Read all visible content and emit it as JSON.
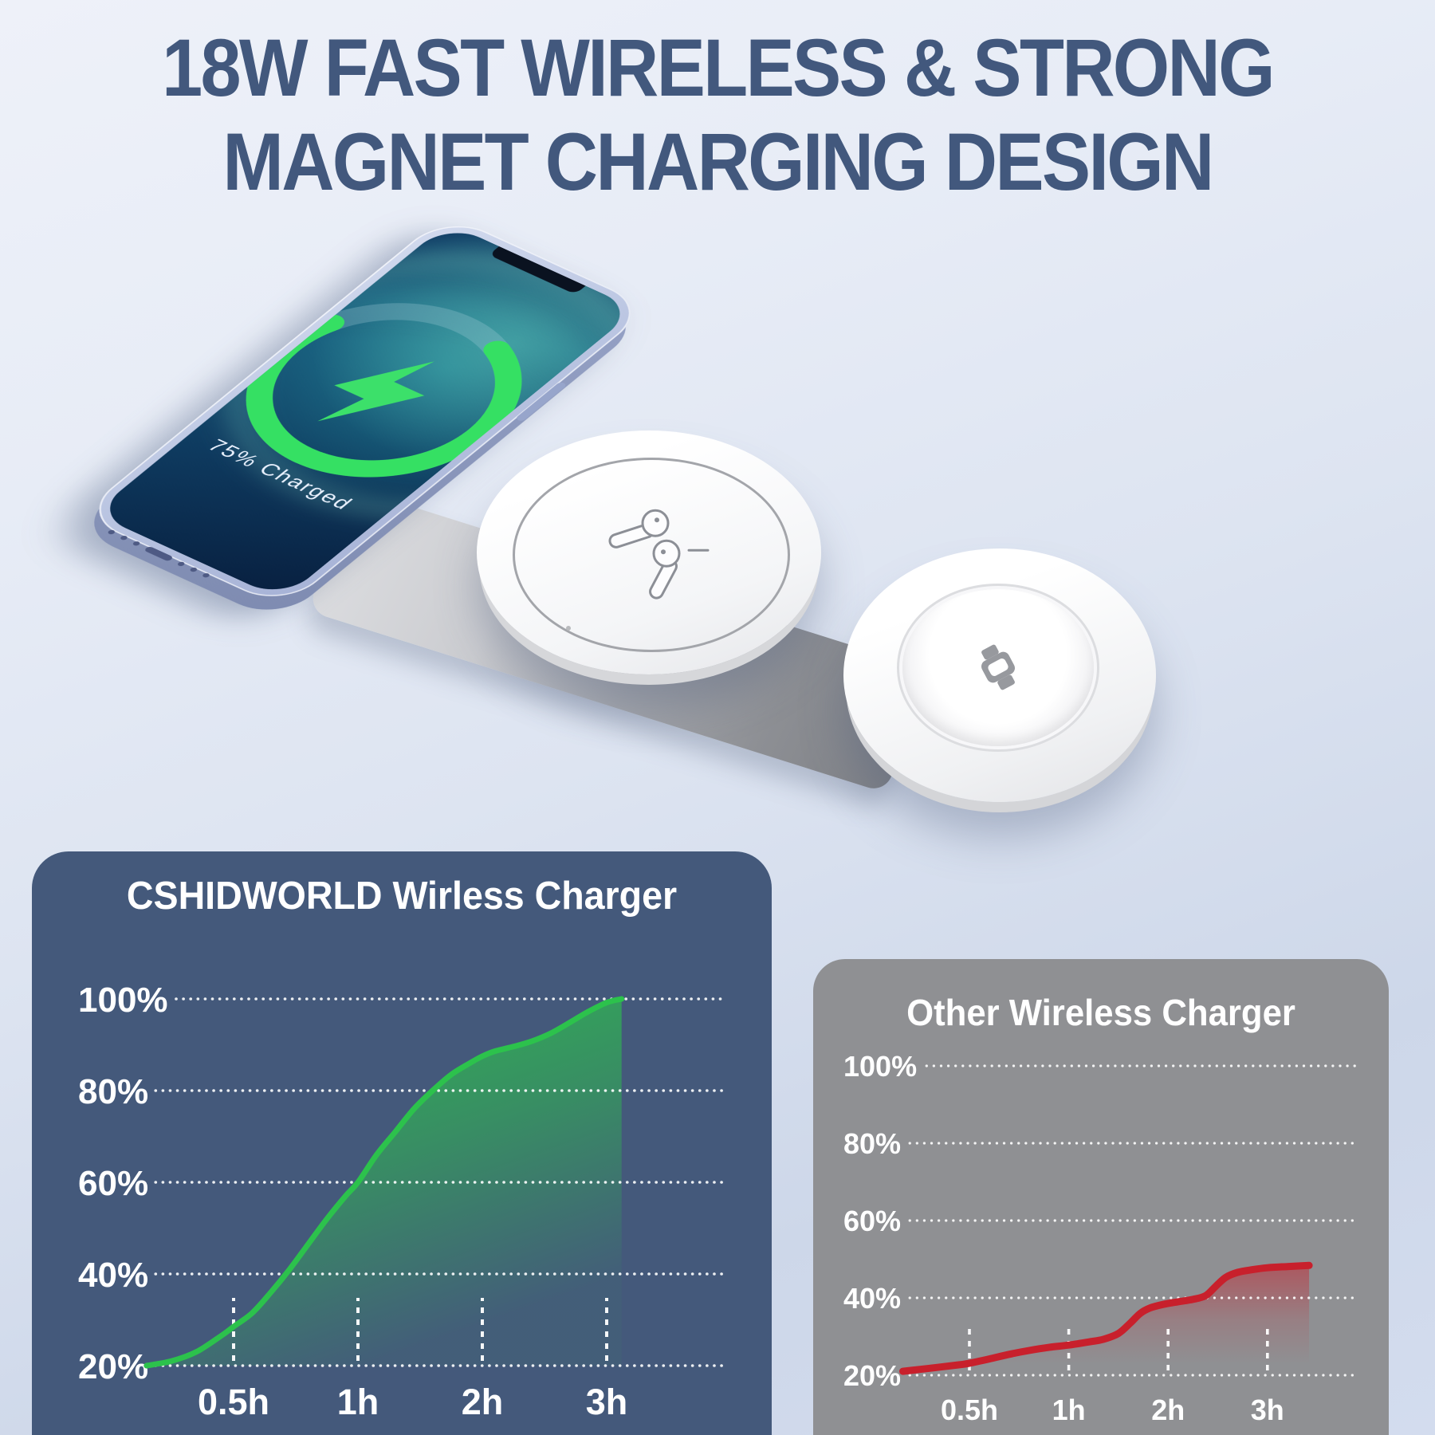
{
  "header": {
    "title_line1": "18W FAST WIRELESS & STRONG",
    "title_line2": "MAGNET CHARGING DESIGN"
  },
  "product": {
    "charge_text": "75% Charged",
    "charge_percent": 75,
    "icons": {
      "phone_screen": "lightning-bolt-icon",
      "middle_pad": "earbuds-icon",
      "right_pad": "smart-watch-icon"
    }
  },
  "colors": {
    "heading": "#42587d",
    "left_panel": "#44597b",
    "right_panel": "#8f9093",
    "green_line": "#2cc24c",
    "red_line": "#c8202c",
    "ring_green": "#35e063",
    "grid_dots": "#ffffff"
  },
  "chart_data": [
    {
      "type": "area",
      "title": "CSHIDWORLD Wirless Charger",
      "x_tick_labels": [
        "0.5h",
        "1h",
        "2h",
        "3h"
      ],
      "y_tick_labels": [
        "100%",
        "80%",
        "60%",
        "40%",
        "20%"
      ],
      "ylim": [
        20,
        100
      ],
      "baseline_pct": 20,
      "x_axis_note": "ticks equally spaced at category positions 1,2,3,4",
      "grid": "dotted-white",
      "legend": "none",
      "line_color": "#2cc24c",
      "points": [
        [
          0.3,
          20
        ],
        [
          0.5,
          21
        ],
        [
          0.7,
          23
        ],
        [
          0.9,
          26.5
        ],
        [
          1,
          28.5
        ],
        [
          1.15,
          31.5
        ],
        [
          1.3,
          36
        ],
        [
          1.45,
          41
        ],
        [
          1.6,
          46.5
        ],
        [
          1.75,
          52
        ],
        [
          1.9,
          57
        ],
        [
          2,
          60
        ],
        [
          2.15,
          66
        ],
        [
          2.3,
          71
        ],
        [
          2.45,
          76
        ],
        [
          2.6,
          80
        ],
        [
          2.75,
          83.5
        ],
        [
          2.9,
          86
        ],
        [
          3,
          87.5
        ],
        [
          3.1,
          88.6
        ],
        [
          3.25,
          89.6
        ],
        [
          3.4,
          90.8
        ],
        [
          3.55,
          92.5
        ],
        [
          3.7,
          94.8
        ],
        [
          3.85,
          97.2
        ],
        [
          4,
          99.2
        ],
        [
          4.12,
          100
        ]
      ]
    },
    {
      "type": "line",
      "title": "Other Wireless Charger",
      "x_tick_labels": [
        "0.5h",
        "1h",
        "2h",
        "3h"
      ],
      "y_tick_labels": [
        "100%",
        "80%",
        "60%",
        "40%",
        "20%"
      ],
      "ylim": [
        20,
        100
      ],
      "baseline_pct": 20,
      "x_axis_note": "ticks equally spaced at category positions 1,2,3,4",
      "grid": "dotted-white",
      "legend": "none",
      "line_color": "#c8202c",
      "points": [
        [
          0.33,
          21
        ],
        [
          0.6,
          21.8
        ],
        [
          0.9,
          22.7
        ],
        [
          1,
          23.1
        ],
        [
          1.2,
          24.2
        ],
        [
          1.4,
          25.4
        ],
        [
          1.6,
          26.4
        ],
        [
          1.8,
          27.2
        ],
        [
          2,
          27.8
        ],
        [
          2.2,
          28.6
        ],
        [
          2.35,
          29.3
        ],
        [
          2.5,
          30.8
        ],
        [
          2.62,
          33.5
        ],
        [
          2.72,
          36
        ],
        [
          2.82,
          37.4
        ],
        [
          2.95,
          38.3
        ],
        [
          3.1,
          39
        ],
        [
          3.25,
          39.6
        ],
        [
          3.38,
          40.6
        ],
        [
          3.48,
          43
        ],
        [
          3.58,
          45.3
        ],
        [
          3.7,
          46.6
        ],
        [
          3.85,
          47.3
        ],
        [
          4,
          47.8
        ],
        [
          4.2,
          48.1
        ],
        [
          4.42,
          48.4
        ]
      ]
    }
  ]
}
